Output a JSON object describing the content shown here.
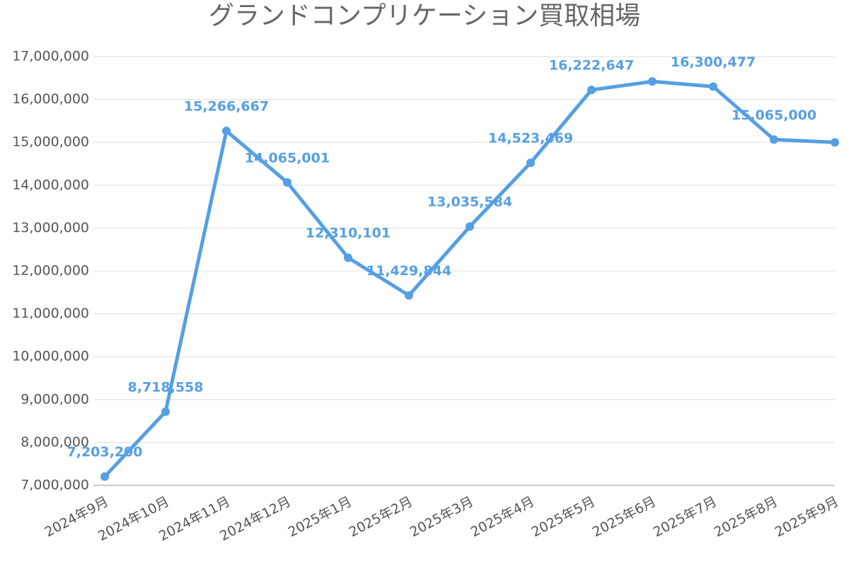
{
  "chart_data": {
    "type": "line",
    "title": "グランドコンプリケーション買取相場",
    "categories": [
      "2024年9月",
      "2024年10月",
      "2024年11月",
      "2024年12月",
      "2025年1月",
      "2025年2月",
      "2025年3月",
      "2025年4月",
      "2025年5月",
      "2025年6月",
      "2025年7月",
      "2025年8月",
      "2025年9月"
    ],
    "series": [
      {
        "name": "買取相場",
        "color": "#559fe3",
        "values": [
          7203200,
          8718558,
          15266667,
          14065001,
          12310101,
          11429844,
          13035584,
          14523469,
          16222647,
          16420000,
          16300477,
          15065000,
          15000000
        ],
        "value_labels": [
          "7,203,200",
          "8,718,558",
          "15,266,667",
          "14,065,001",
          "12,310,101",
          "11,429,844",
          "13,035,584",
          "14,523,469",
          "16,222,647",
          null,
          "16,300,477",
          "15,065,000",
          null
        ]
      }
    ],
    "ylim": [
      7000000,
      17000000
    ],
    "yticks": [
      {
        "value": 7000000,
        "label": "7,000,000"
      },
      {
        "value": 8000000,
        "label": "8,000,000"
      },
      {
        "value": 9000000,
        "label": "9,000,000"
      },
      {
        "value": 10000000,
        "label": "10,000,000"
      },
      {
        "value": 11000000,
        "label": "11,000,000"
      },
      {
        "value": 12000000,
        "label": "12,000,000"
      },
      {
        "value": 13000000,
        "label": "13,000,000"
      },
      {
        "value": 14000000,
        "label": "14,000,000"
      },
      {
        "value": 15000000,
        "label": "15,000,000"
      },
      {
        "value": 16000000,
        "label": "16,000,000"
      },
      {
        "value": 17000000,
        "label": "17,000,000"
      }
    ],
    "grid": true
  }
}
